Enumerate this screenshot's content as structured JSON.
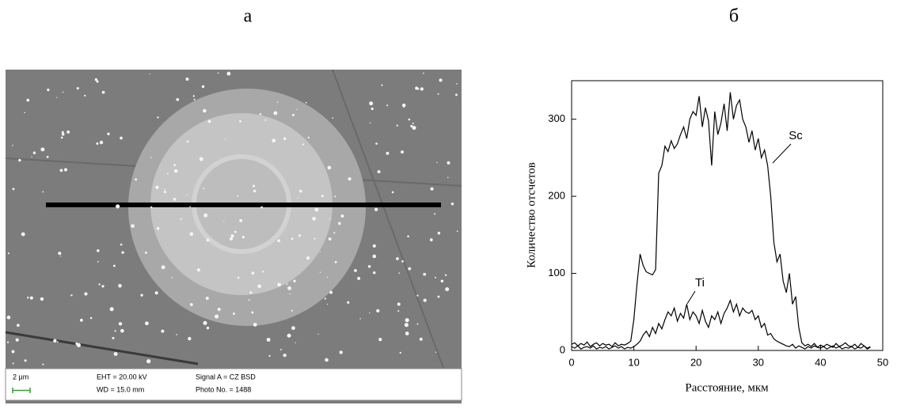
{
  "panel_a": {
    "label": "а",
    "scale_bar": "2 µm",
    "info": [
      "EHT = 20.00 kV",
      "WD = 15.0 mm",
      "Signal A = CZ BSD",
      "Photo No. = 1488"
    ]
  },
  "panel_b": {
    "label": "б"
  },
  "chart_data": {
    "type": "line",
    "x_label": "Расстояние, мкм",
    "y_label": "Количество отсчетов",
    "x": [
      0,
      0.5,
      1,
      1.5,
      2,
      2.5,
      3,
      3.5,
      4,
      4.5,
      5,
      5.5,
      6,
      6.5,
      7,
      7.5,
      8,
      8.5,
      9,
      9.5,
      10,
      10.5,
      11,
      11.5,
      12,
      12.5,
      13,
      13.5,
      14,
      14.5,
      15,
      15.5,
      16,
      16.5,
      17,
      17.5,
      18,
      18.5,
      19,
      19.5,
      20,
      20.5,
      21,
      21.5,
      22,
      22.5,
      23,
      23.5,
      24,
      24.5,
      25,
      25.5,
      26,
      26.5,
      27,
      27.5,
      28,
      28.5,
      29,
      29.5,
      30,
      30.5,
      31,
      31.5,
      32,
      32.5,
      33,
      33.5,
      34,
      34.5,
      35,
      35.5,
      36,
      36.5,
      37,
      37.5,
      38,
      38.5,
      39,
      39.5,
      40,
      40.5,
      41,
      41.5,
      42,
      42.5,
      43,
      43.5,
      44,
      44.5,
      45,
      45.5,
      46,
      46.5,
      47,
      47.5,
      48
    ],
    "series": [
      {
        "name": "Sc",
        "color": "#000000",
        "values": [
          8,
          10,
          6,
          9,
          7,
          11,
          5,
          8,
          10,
          6,
          9,
          7,
          8,
          5,
          10,
          6,
          8,
          7,
          9,
          12,
          40,
          85,
          125,
          110,
          102,
          100,
          98,
          105,
          230,
          240,
          265,
          258,
          272,
          262,
          268,
          280,
          290,
          275,
          300,
          310,
          305,
          330,
          290,
          315,
          298,
          240,
          310,
          280,
          295,
          320,
          285,
          335,
          300,
          318,
          325,
          300,
          290,
          270,
          285,
          260,
          275,
          250,
          260,
          240,
          200,
          140,
          115,
          125,
          90,
          75,
          100,
          60,
          70,
          30,
          10,
          6,
          8,
          5,
          9,
          4,
          7,
          5,
          8,
          6,
          4,
          9,
          5,
          7,
          10,
          6,
          5,
          8,
          4,
          9,
          6,
          3,
          5
        ]
      },
      {
        "name": "Ti",
        "color": "#000000",
        "values": [
          5,
          3,
          6,
          2,
          4,
          5,
          3,
          6,
          2,
          4,
          3,
          5,
          2,
          4,
          6,
          3,
          5,
          2,
          4,
          3,
          5,
          8,
          12,
          20,
          25,
          18,
          30,
          22,
          35,
          28,
          40,
          50,
          45,
          55,
          38,
          48,
          42,
          60,
          40,
          50,
          45,
          35,
          52,
          38,
          30,
          45,
          40,
          50,
          35,
          48,
          55,
          65,
          50,
          60,
          45,
          55,
          50,
          48,
          52,
          40,
          45,
          30,
          35,
          20,
          22,
          15,
          12,
          10,
          8,
          6,
          5,
          8,
          3,
          6,
          4,
          2,
          5,
          3,
          6,
          4,
          3,
          5,
          2,
          4,
          6,
          3,
          5,
          2,
          4,
          3,
          5,
          2,
          4,
          3,
          6,
          2,
          4
        ]
      }
    ],
    "xlim": [
      0,
      50
    ],
    "ylim": [
      0,
      350
    ],
    "xticks": [
      0,
      10,
      20,
      30,
      40,
      50
    ],
    "yticks": [
      0,
      100,
      200,
      300
    ]
  }
}
